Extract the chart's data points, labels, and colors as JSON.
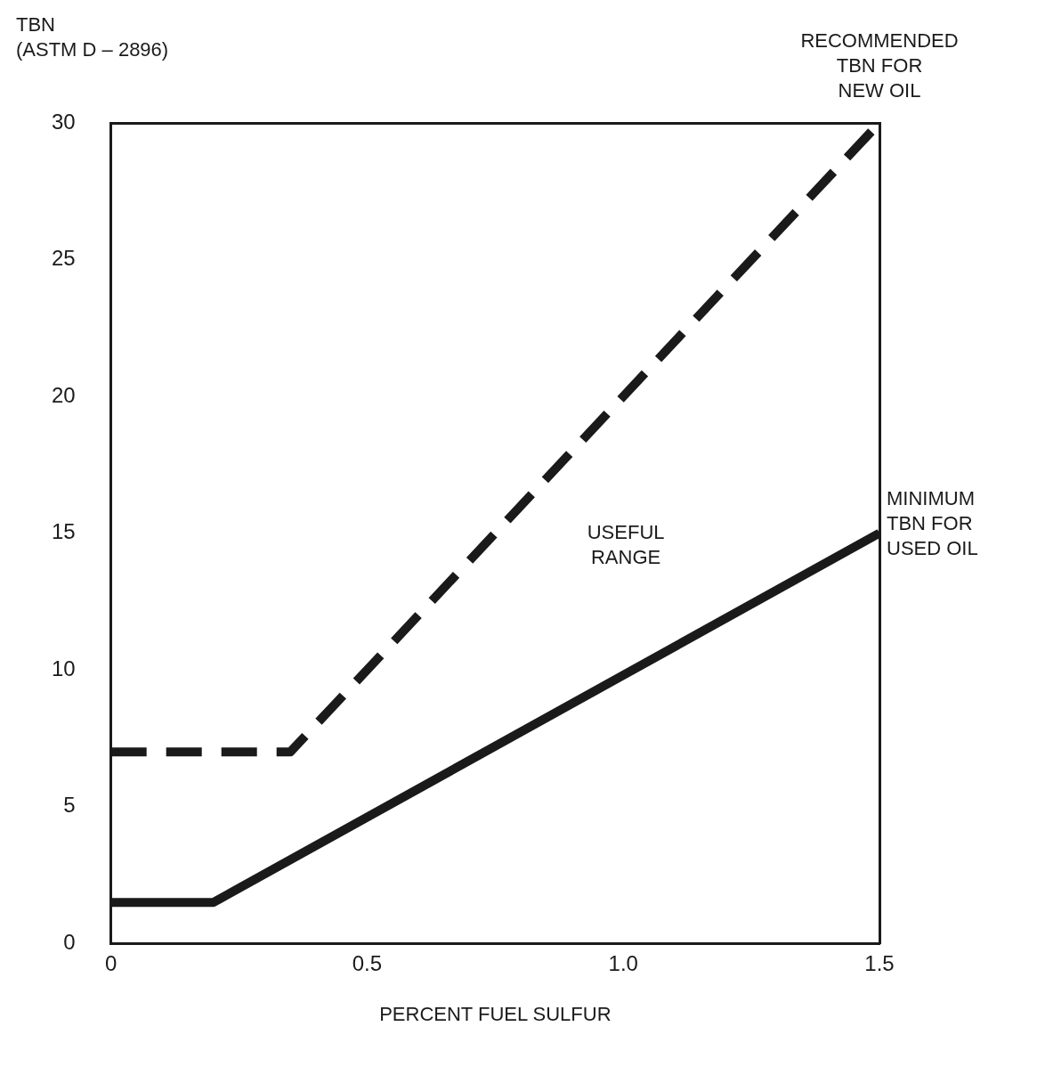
{
  "chart_data": {
    "type": "line",
    "ylabel": "TBN\n(ASTM D – 2896)",
    "xlabel": "PERCENT FUEL SULFUR",
    "series": [
      {
        "name": "RECOMMENDED\nTBN FOR\nNEW OIL",
        "color": "#1a1a1a",
        "line_style": "dashed",
        "x": [
          0,
          0.35,
          1.5
        ],
        "values": [
          7,
          7,
          30
        ]
      },
      {
        "name": "MINIMUM\nTBN FOR\nUSED OIL",
        "color": "#1a1a1a",
        "line_style": "solid",
        "x": [
          0,
          0.2,
          1.5
        ],
        "values": [
          1.5,
          1.5,
          15
        ]
      }
    ],
    "annotations": [
      "USEFUL\nRANGE"
    ],
    "xlim": [
      0,
      1.5
    ],
    "xticks": [
      0,
      0.5,
      {
        "value": 1,
        "label": "1.0"
      },
      1.5
    ],
    "ylim": [
      0,
      30
    ],
    "yticks": [
      0,
      5,
      10,
      15,
      20,
      25,
      30
    ],
    "grid": false,
    "legend": false,
    "marker": "none"
  }
}
